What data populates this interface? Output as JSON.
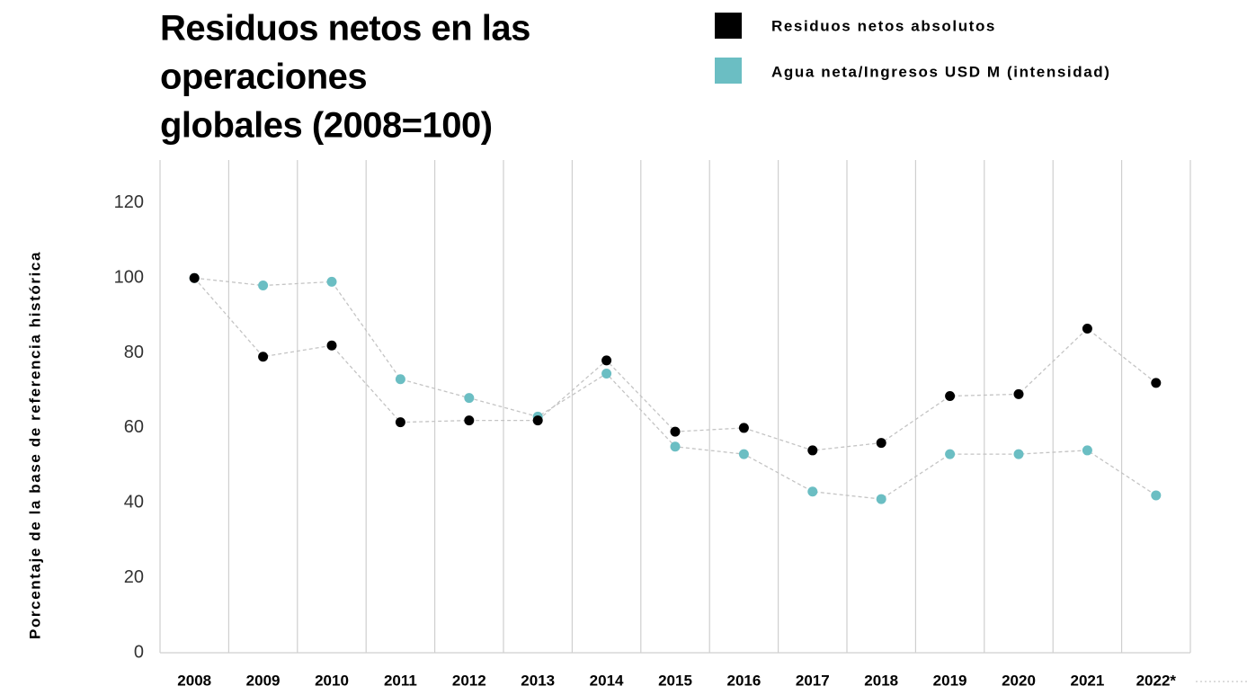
{
  "chart_data": {
    "type": "line",
    "title": [
      "Residuos netos en las",
      "operaciones",
      "globales (2008=100)"
    ],
    "y_label": "Porcentaje de la base de referencia histórica",
    "categories": [
      "2008",
      "2009",
      "2010",
      "2011",
      "2012",
      "2013",
      "2014",
      "2015",
      "2016",
      "2017",
      "2018",
      "2019",
      "2020",
      "2021",
      "2022*"
    ],
    "series": [
      {
        "name": "Residuos netos absolutos",
        "color": "#000000",
        "values": [
          100,
          79,
          82,
          61.5,
          62,
          62,
          78,
          59,
          60,
          54,
          56,
          68.5,
          69,
          86.5,
          72
        ]
      },
      {
        "name": "Agua neta/Ingresos USD M (intensidad)",
        "color": "#6bbec3",
        "values": [
          100,
          98,
          99,
          73,
          68,
          63,
          74.5,
          55,
          53,
          43,
          41,
          53,
          53,
          54,
          42
        ]
      }
    ],
    "ylim": [
      0,
      131
    ],
    "yticks": [
      0,
      20,
      40,
      60,
      80,
      100,
      120
    ]
  }
}
